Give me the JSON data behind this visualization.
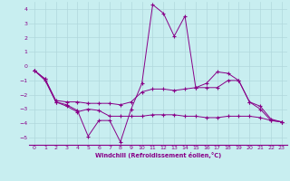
{
  "xlabel": "Windchill (Refroidissement éolien,°C)",
  "background_color": "#c8eef0",
  "grid_color": "#b0d8dc",
  "line_color": "#880088",
  "xlim": [
    -0.5,
    23.5
  ],
  "ylim": [
    -5.5,
    4.5
  ],
  "yticks": [
    -5,
    -4,
    -3,
    -2,
    -1,
    0,
    1,
    2,
    3,
    4
  ],
  "xticks": [
    0,
    1,
    2,
    3,
    4,
    5,
    6,
    7,
    8,
    9,
    10,
    11,
    12,
    13,
    14,
    15,
    16,
    17,
    18,
    19,
    20,
    21,
    22,
    23
  ],
  "line1_x": [
    0,
    1,
    2,
    3,
    4,
    5,
    6,
    7,
    8,
    9,
    10,
    11,
    12,
    13,
    14,
    15,
    16,
    17,
    18,
    19,
    20,
    21,
    22,
    23
  ],
  "line1_y": [
    -0.3,
    -1.0,
    -2.5,
    -2.7,
    -3.1,
    -4.9,
    -3.8,
    -3.8,
    -5.3,
    -3.0,
    -1.2,
    4.3,
    3.7,
    2.1,
    3.5,
    -1.5,
    -1.2,
    -0.4,
    -0.5,
    -1.0,
    -2.5,
    -3.0,
    -3.8,
    -3.9
  ],
  "line2_x": [
    0,
    1,
    2,
    3,
    4,
    5,
    6,
    7,
    8,
    9,
    10,
    11,
    12,
    13,
    14,
    15,
    16,
    17,
    18,
    19,
    20,
    21,
    22,
    23
  ],
  "line2_y": [
    -0.3,
    -0.9,
    -2.4,
    -2.5,
    -2.5,
    -2.6,
    -2.6,
    -2.6,
    -2.7,
    -2.5,
    -1.8,
    -1.6,
    -1.6,
    -1.7,
    -1.6,
    -1.5,
    -1.5,
    -1.5,
    -1.0,
    -1.0,
    -2.5,
    -2.8,
    -3.7,
    -3.9
  ],
  "line3_x": [
    0,
    1,
    2,
    3,
    4,
    5,
    6,
    7,
    8,
    9,
    10,
    11,
    12,
    13,
    14,
    15,
    16,
    17,
    18,
    19,
    20,
    21,
    22,
    23
  ],
  "line3_y": [
    -0.3,
    -0.9,
    -2.5,
    -2.8,
    -3.2,
    -3.0,
    -3.1,
    -3.5,
    -3.5,
    -3.5,
    -3.5,
    -3.4,
    -3.4,
    -3.4,
    -3.5,
    -3.5,
    -3.6,
    -3.6,
    -3.5,
    -3.5,
    -3.5,
    -3.6,
    -3.8,
    -3.9
  ]
}
